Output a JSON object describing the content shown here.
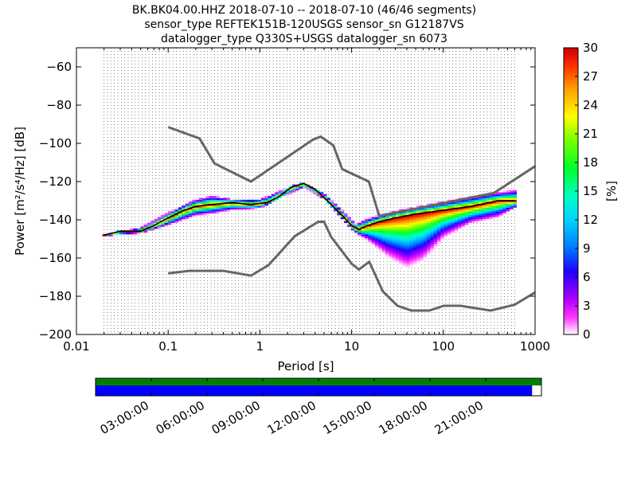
{
  "chart_data": {
    "type": "heatmap",
    "title_lines": [
      "BK.BK04.00.HHZ   2018-07-10 -- 2018-07-10  (46/46 segments)",
      "sensor_type REFTEK151B-120USGS sensor_sn G12187VS",
      "datalogger_type Q330S+USGS datalogger_sn 6073"
    ],
    "xlabel": "Period [s]",
    "ylabel": "Power [m²/s⁴/Hz] [dB]",
    "x_scale": "log",
    "xlim": [
      0.01,
      1000
    ],
    "ylim": [
      -200,
      -50
    ],
    "x_ticks": [
      0.01,
      0.1,
      1,
      10,
      100,
      1000
    ],
    "x_tick_labels": [
      "0.01",
      "0.1",
      "1",
      "10",
      "100",
      "1000"
    ],
    "y_ticks": [
      -200,
      -180,
      -160,
      -140,
      -120,
      -100,
      -80,
      -60
    ],
    "y_tick_labels": [
      "−200",
      "−180",
      "−160",
      "−140",
      "−120",
      "−100",
      "−80",
      "−60"
    ],
    "grid": "dotted vertical at period bin centers",
    "colorbar": {
      "label": "[%]",
      "range": [
        0,
        30
      ],
      "ticks": [
        0,
        3,
        6,
        9,
        12,
        15,
        18,
        21,
        24,
        27,
        30
      ]
    },
    "noise_models": {
      "high": [
        [
          0.1,
          -91.5
        ],
        [
          0.22,
          -97.4
        ],
        [
          0.32,
          -110.5
        ],
        [
          0.8,
          -120
        ],
        [
          3.8,
          -98
        ],
        [
          4.6,
          -96.5
        ],
        [
          6.3,
          -101
        ],
        [
          7.9,
          -113.5
        ],
        [
          15.4,
          -120
        ],
        [
          20,
          -138
        ],
        [
          354.8,
          -126
        ],
        [
          1000,
          -112
        ]
      ],
      "low": [
        [
          0.1,
          -168
        ],
        [
          0.17,
          -166.7
        ],
        [
          0.4,
          -166.7
        ],
        [
          0.8,
          -169.2
        ],
        [
          1.24,
          -163.7
        ],
        [
          2.4,
          -148.6
        ],
        [
          4.3,
          -141.1
        ],
        [
          5,
          -141
        ],
        [
          6,
          -149
        ],
        [
          10,
          -163
        ],
        [
          12,
          -166
        ],
        [
          15.6,
          -162
        ],
        [
          21.9,
          -177.5
        ],
        [
          31.6,
          -185
        ],
        [
          45,
          -187.5
        ],
        [
          70,
          -187.5
        ],
        [
          101,
          -185
        ],
        [
          154,
          -185
        ],
        [
          328,
          -187.5
        ],
        [
          600,
          -184.4
        ],
        [
          1000,
          -178
        ]
      ]
    },
    "median_line": [
      [
        0.02,
        -148
      ],
      [
        0.03,
        -146
      ],
      [
        0.05,
        -146
      ],
      [
        0.07,
        -143
      ],
      [
        0.1,
        -139
      ],
      [
        0.15,
        -135
      ],
      [
        0.2,
        -133
      ],
      [
        0.3,
        -132
      ],
      [
        0.5,
        -131
      ],
      [
        0.8,
        -132
      ],
      [
        1.2,
        -131
      ],
      [
        1.6,
        -128
      ],
      [
        2.2,
        -123
      ],
      [
        3,
        -121
      ],
      [
        4,
        -124
      ],
      [
        6,
        -132
      ],
      [
        8,
        -138
      ],
      [
        10,
        -143
      ],
      [
        12,
        -145
      ],
      [
        15,
        -143
      ],
      [
        20,
        -141
      ],
      [
        30,
        -139
      ],
      [
        50,
        -137
      ],
      [
        100,
        -135
      ],
      [
        200,
        -133
      ],
      [
        400,
        -130
      ],
      [
        600,
        -130
      ]
    ],
    "spread_envelope": {
      "upper": [
        [
          0.02,
          -147.5
        ],
        [
          0.05,
          -144
        ],
        [
          0.1,
          -136
        ],
        [
          0.2,
          -129
        ],
        [
          0.3,
          -127
        ],
        [
          0.5,
          -129
        ],
        [
          1,
          -129
        ],
        [
          2,
          -123
        ],
        [
          3,
          -120
        ],
        [
          5,
          -126
        ],
        [
          8,
          -135
        ],
        [
          11,
          -142
        ],
        [
          15,
          -139
        ],
        [
          30,
          -135
        ],
        [
          100,
          -130
        ],
        [
          300,
          -126
        ],
        [
          600,
          -124
        ]
      ],
      "lower": [
        [
          0.02,
          -148.5
        ],
        [
          0.05,
          -147
        ],
        [
          0.1,
          -143
        ],
        [
          0.2,
          -138
        ],
        [
          0.3,
          -137
        ],
        [
          0.5,
          -135
        ],
        [
          1,
          -134
        ],
        [
          2,
          -127
        ],
        [
          3,
          -123
        ],
        [
          5,
          -129
        ],
        [
          8,
          -140
        ],
        [
          11,
          -147
        ],
        [
          15,
          -151
        ],
        [
          25,
          -160
        ],
        [
          40,
          -166
        ],
        [
          60,
          -162
        ],
        [
          100,
          -150
        ],
        [
          200,
          -142
        ],
        [
          400,
          -139
        ],
        [
          600,
          -134
        ]
      ]
    },
    "timeline": {
      "tick_labels": [
        "03:00:00",
        "06:00:00",
        "09:00:00",
        "12:00:00",
        "15:00:00",
        "18:00:00",
        "21:00:00"
      ],
      "tick_hours": [
        3,
        6,
        9,
        12,
        15,
        18,
        21
      ],
      "range_hours": [
        0,
        24
      ],
      "data_bar_fraction": 1.0,
      "psd_bar_fraction": 0.979,
      "colors": {
        "data": "#008000",
        "psd": "#0000ff"
      }
    }
  }
}
